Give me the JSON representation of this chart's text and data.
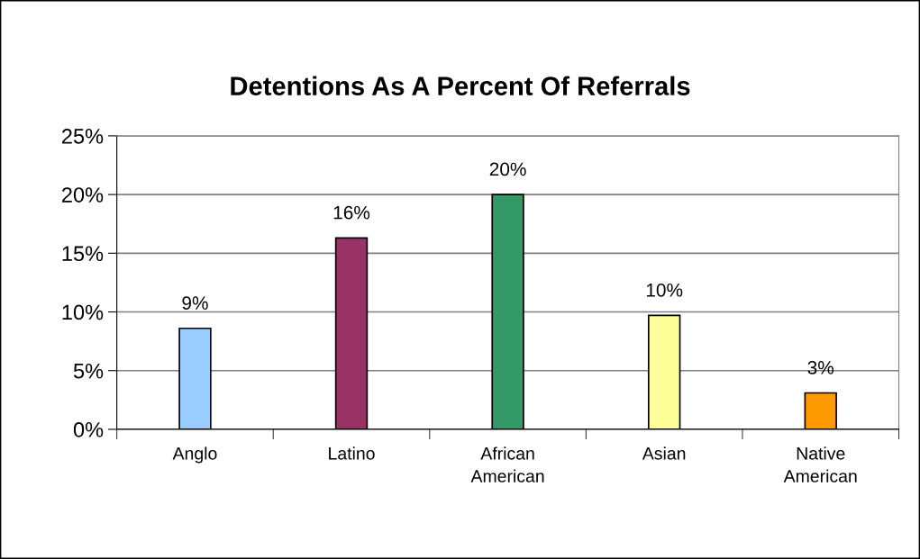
{
  "chart_data": {
    "type": "bar",
    "title": "Detentions As A Percent Of Referrals",
    "categories": [
      "Anglo",
      "Latino",
      "African American",
      "Asian",
      "Native American"
    ],
    "values": [
      8.6,
      16.3,
      20.0,
      9.7,
      3.1
    ],
    "colors": [
      "#99ccff",
      "#993366",
      "#339966",
      "#ffff99",
      "#ff9900"
    ],
    "value_labels": [
      "9%",
      "16%",
      "20%",
      "10%",
      "3%"
    ],
    "ylim": [
      0,
      25
    ],
    "yticks": [
      {
        "value": 0,
        "label": "0%"
      },
      {
        "value": 5,
        "label": "5%"
      },
      {
        "value": 10,
        "label": "10%"
      },
      {
        "value": 15,
        "label": "15%"
      },
      {
        "value": 20,
        "label": "20%"
      },
      {
        "value": 25,
        "label": "25%"
      }
    ],
    "grid": "y",
    "legend": false
  }
}
